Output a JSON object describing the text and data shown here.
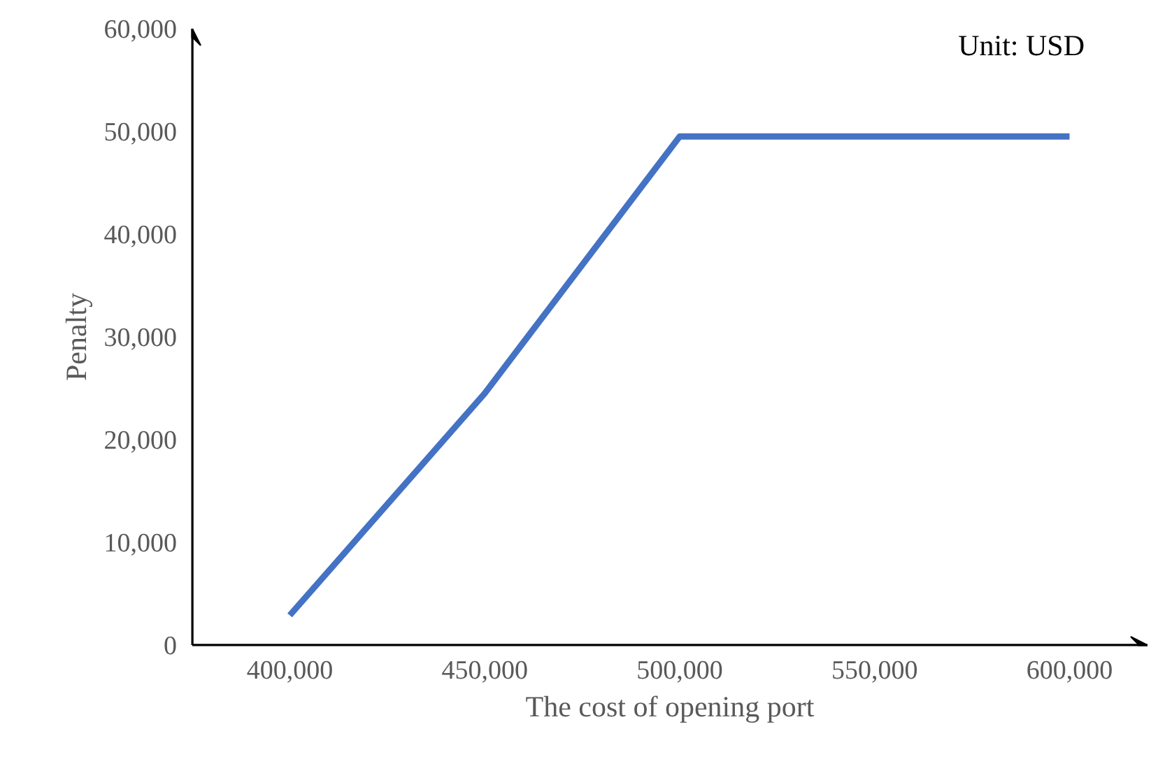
{
  "chart_data": {
    "type": "line",
    "xlabel": "The cost of opening port",
    "ylabel": "Penalty",
    "categories": [
      "400,000",
      "450,000",
      "500,000",
      "550,000",
      "600,000"
    ],
    "series": [
      {
        "color": "#4472c4",
        "values": [
          2900,
          24500,
          49500,
          49500,
          49500
        ]
      }
    ],
    "ylim": [
      0,
      60000
    ],
    "yticks": [
      {
        "value": 0,
        "label": "0"
      },
      {
        "value": 10000,
        "label": "10,000"
      },
      {
        "value": 20000,
        "label": "20,000"
      },
      {
        "value": 30000,
        "label": "30,000"
      },
      {
        "value": 40000,
        "label": "40,000"
      },
      {
        "value": 50000,
        "label": "50,000"
      },
      {
        "value": 60000,
        "label": "60,000"
      }
    ],
    "annotations": [
      "Unit: USD"
    ],
    "grid": false,
    "marker": "none",
    "line_style": "solid"
  }
}
